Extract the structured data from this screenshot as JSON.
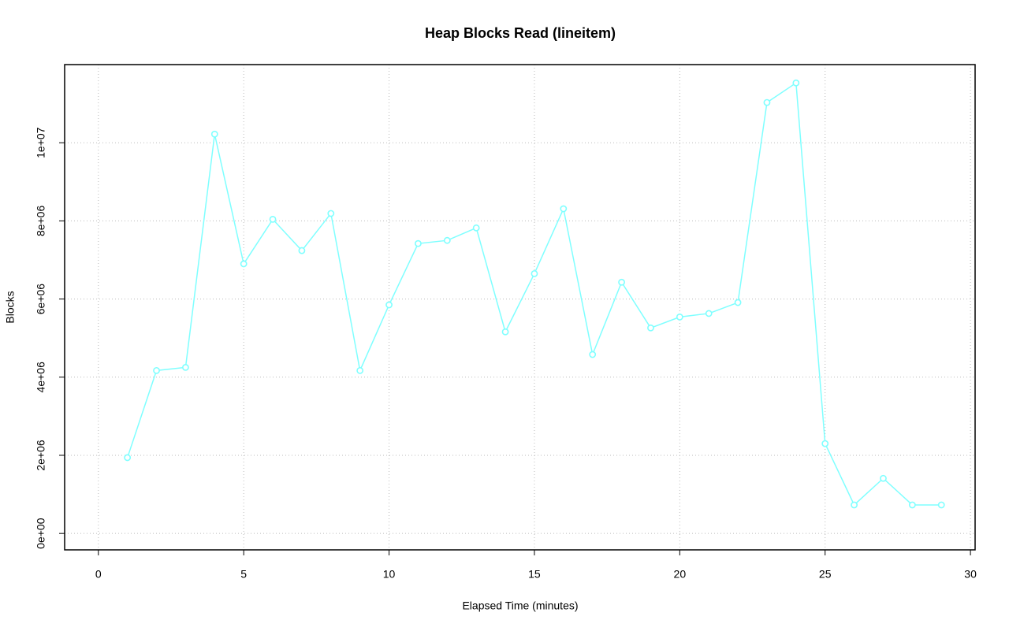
{
  "chart_data": {
    "type": "line",
    "title": "Heap Blocks Read (lineitem)",
    "x_label": "Elapsed Time (minutes)",
    "y_label": "Blocks",
    "x": [
      1,
      2,
      3,
      4,
      5,
      6,
      7,
      8,
      9,
      10,
      11,
      12,
      13,
      14,
      15,
      16,
      17,
      18,
      19,
      20,
      21,
      22,
      23,
      24,
      25,
      26,
      27,
      28,
      29
    ],
    "values": [
      1940000,
      4170000,
      4250000,
      10220000,
      6900000,
      8040000,
      7240000,
      8190000,
      4170000,
      5850000,
      7420000,
      7500000,
      7820000,
      5160000,
      6650000,
      8310000,
      4580000,
      6430000,
      5260000,
      5540000,
      5630000,
      5910000,
      11030000,
      11530000,
      2300000,
      730000,
      1410000,
      730000,
      730000
    ],
    "color": "#7fffff",
    "xlim": [
      -1.16,
      30.16
    ],
    "xticks": [
      0,
      5,
      10,
      15,
      20,
      25,
      30
    ],
    "ylim": [
      -420000,
      12000000
    ],
    "yticks": [
      {
        "value": 0,
        "label": "0e+00"
      },
      {
        "value": 2000000,
        "label": "2e+06"
      },
      {
        "value": 4000000,
        "label": "4e+06"
      },
      {
        "value": 6000000,
        "label": "6e+06"
      },
      {
        "value": 8000000,
        "label": "8e+06"
      },
      {
        "value": 10000000,
        "label": "1e+07"
      }
    ],
    "grid": true
  }
}
